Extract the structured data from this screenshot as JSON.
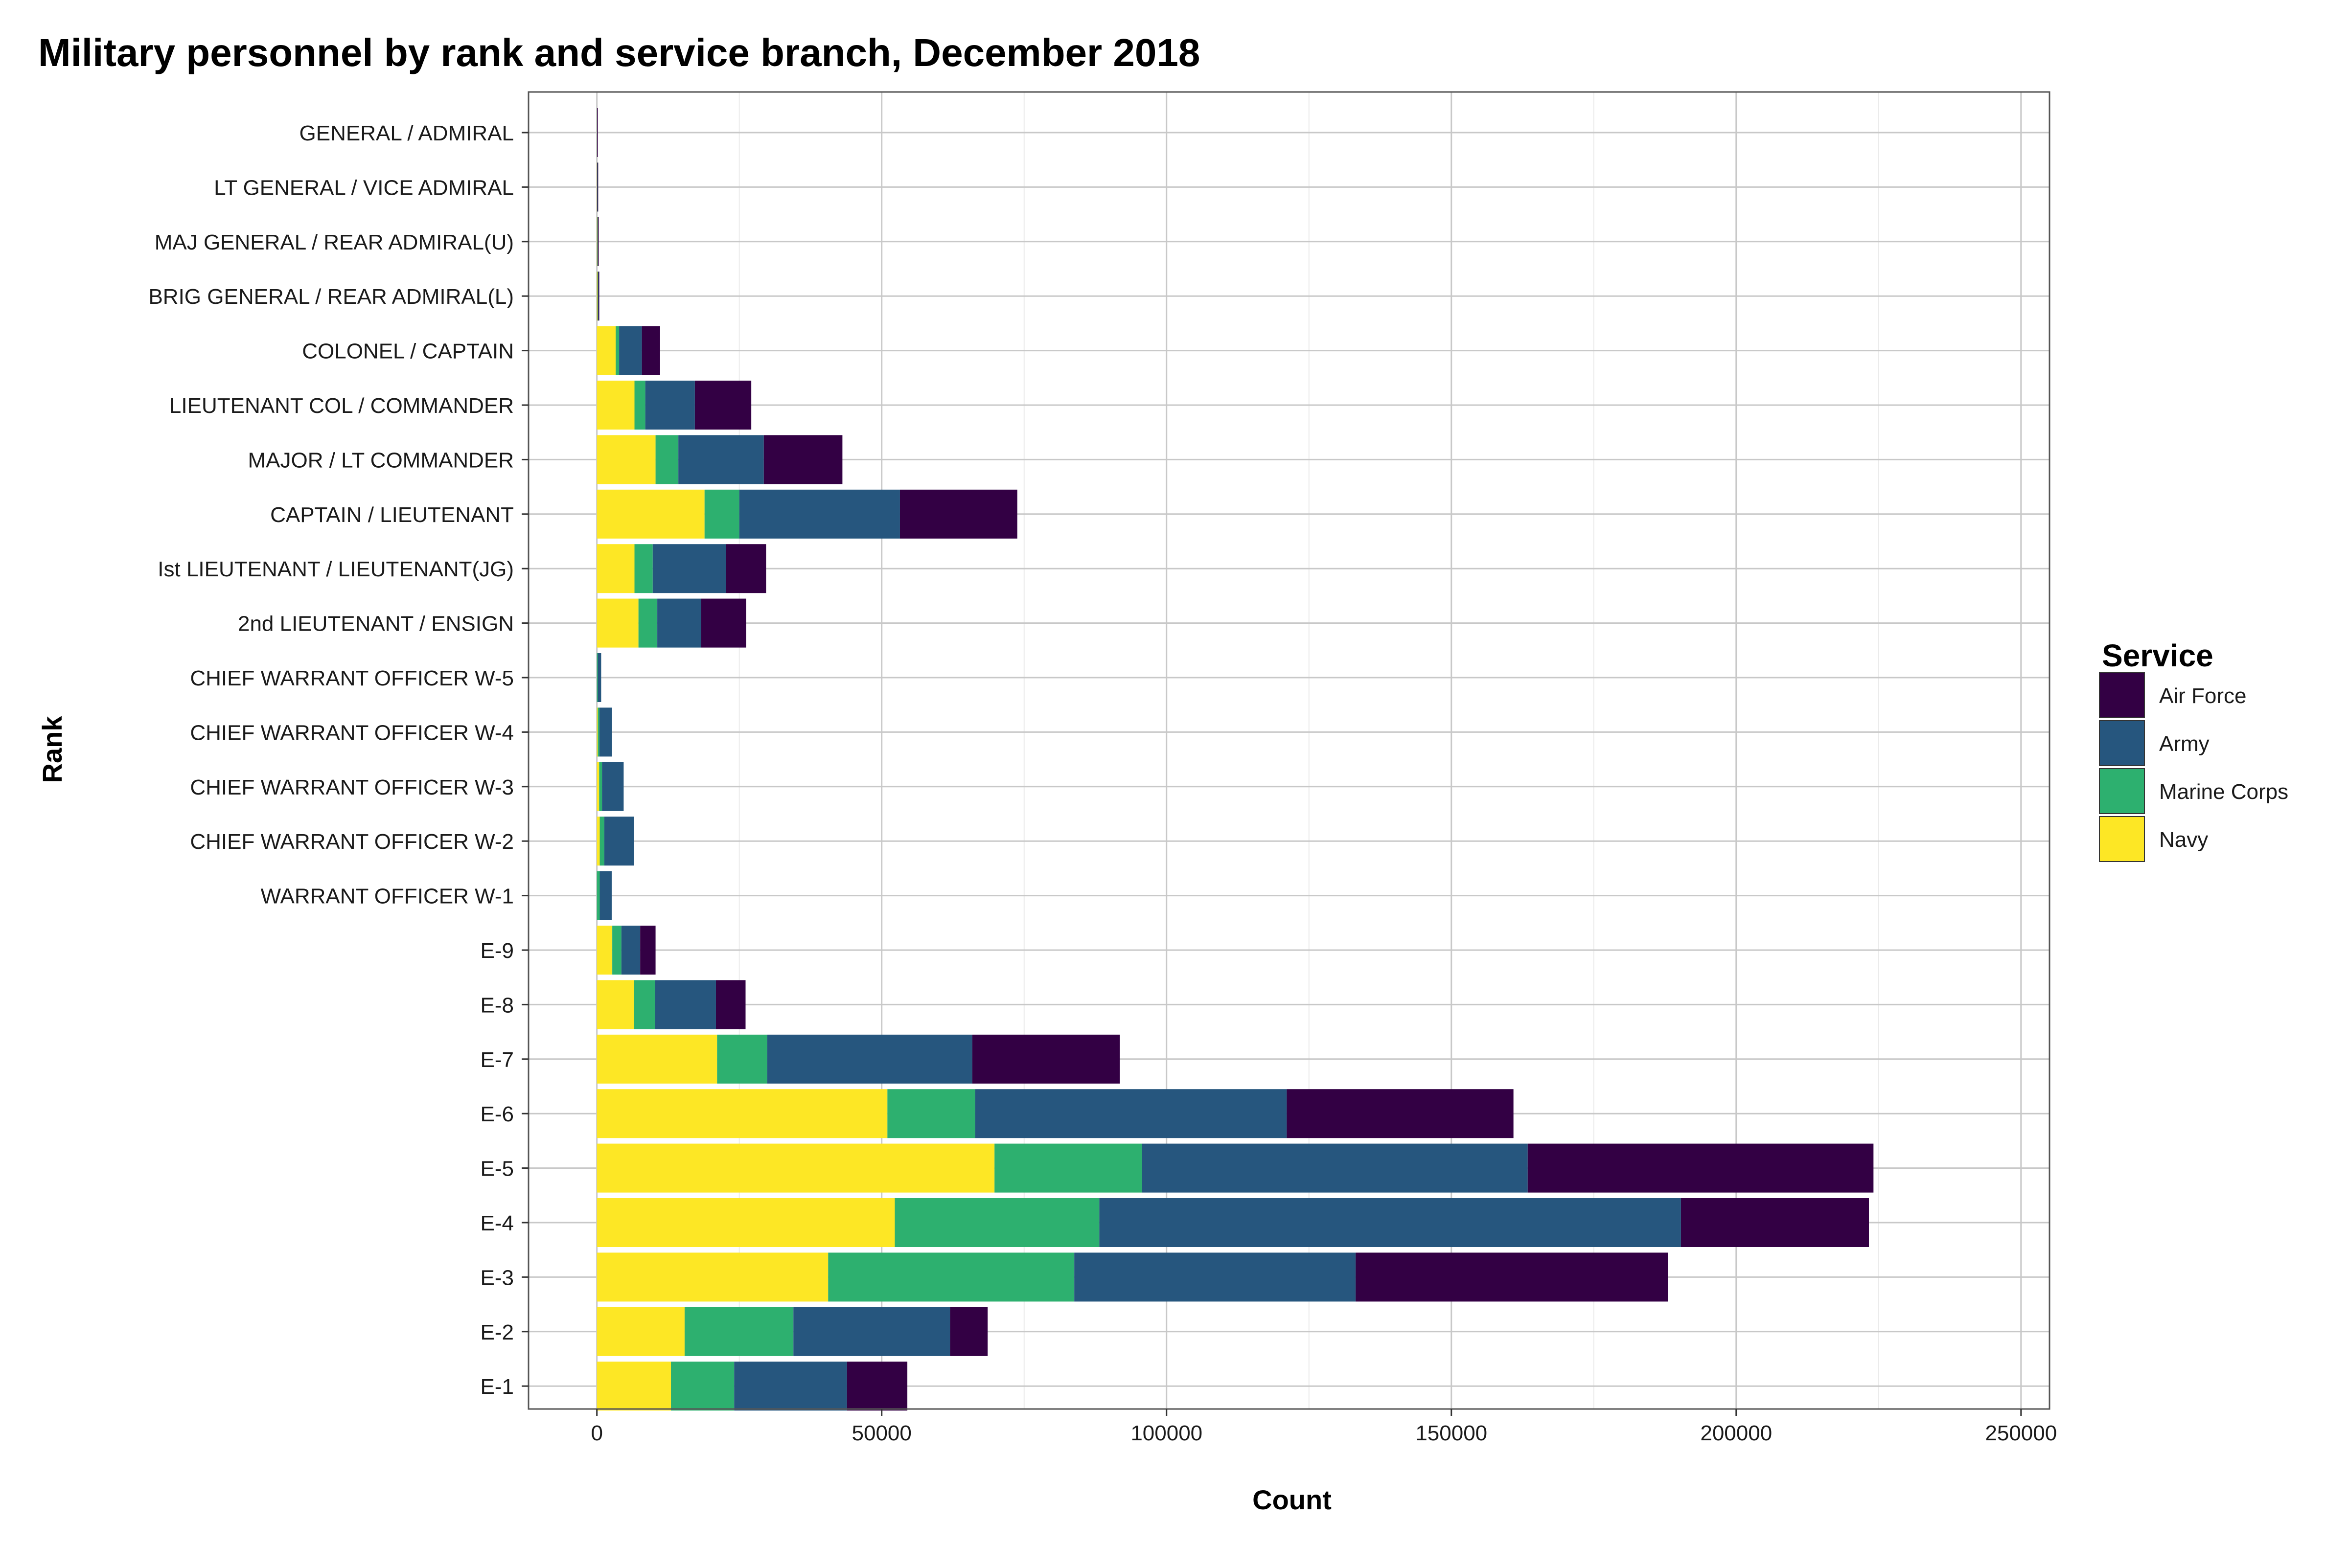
{
  "chart_data": {
    "type": "bar",
    "orientation": "horizontal",
    "stacked": true,
    "title": "Military personnel by rank and service branch, December 2018",
    "xlabel": "Count",
    "ylabel": "Rank",
    "xlim": [
      -12000,
      255000
    ],
    "xticks": [
      0,
      50000,
      100000,
      150000,
      200000,
      250000
    ],
    "xtick_labels": [
      "0",
      "50000",
      "100000",
      "150000",
      "200000",
      "250000"
    ],
    "grid": true,
    "legend": {
      "title": "Service",
      "position": "right"
    },
    "categories": [
      "GENERAL / ADMIRAL",
      "LT GENERAL / VICE ADMIRAL",
      "MAJ GENERAL / REAR ADMIRAL(U)",
      "BRIG GENERAL / REAR ADMIRAL(L)",
      "COLONEL / CAPTAIN",
      "LIEUTENANT COL / COMMANDER",
      "MAJOR / LT COMMANDER",
      "CAPTAIN / LIEUTENANT",
      "Ist LIEUTENANT / LIEUTENANT(JG)",
      "2nd LIEUTENANT / ENSIGN",
      "CHIEF WARRANT OFFICER W-5",
      "CHIEF WARRANT OFFICER W-4",
      "CHIEF WARRANT OFFICER W-3",
      "CHIEF WARRANT OFFICER W-2",
      "WARRANT OFFICER W-1",
      "E-9",
      "E-8",
      "E-7",
      "E-6",
      "E-5",
      "E-4",
      "E-3",
      "E-2",
      "E-1"
    ],
    "series": [
      {
        "name": "Navy",
        "color": "#FDE725",
        "values": [
          10,
          40,
          70,
          110,
          3300,
          6600,
          10300,
          18900,
          6600,
          7300,
          0,
          150,
          400,
          500,
          0,
          2700,
          6500,
          21100,
          51000,
          69800,
          52300,
          40600,
          15400,
          13000
        ]
      },
      {
        "name": "Marine Corps",
        "color": "#2DB06F",
        "values": [
          5,
          10,
          20,
          40,
          600,
          1900,
          4000,
          6100,
          3200,
          3300,
          150,
          300,
          500,
          800,
          500,
          1600,
          3700,
          8800,
          15400,
          25900,
          35900,
          43200,
          19100,
          11100
        ]
      },
      {
        "name": "Army",
        "color": "#26567E",
        "values": [
          15,
          50,
          100,
          130,
          4000,
          8700,
          15000,
          28200,
          12900,
          7700,
          600,
          2200,
          3800,
          5200,
          2100,
          3300,
          10700,
          36000,
          54700,
          67700,
          102100,
          49400,
          27500,
          19800
        ]
      },
      {
        "name": "Air Force",
        "color": "#330044",
        "values": [
          10,
          40,
          80,
          140,
          3200,
          9900,
          13800,
          20600,
          7000,
          7900,
          0,
          0,
          0,
          0,
          0,
          2700,
          5200,
          25900,
          39800,
          60700,
          33000,
          54800,
          6600,
          10600
        ]
      }
    ]
  }
}
